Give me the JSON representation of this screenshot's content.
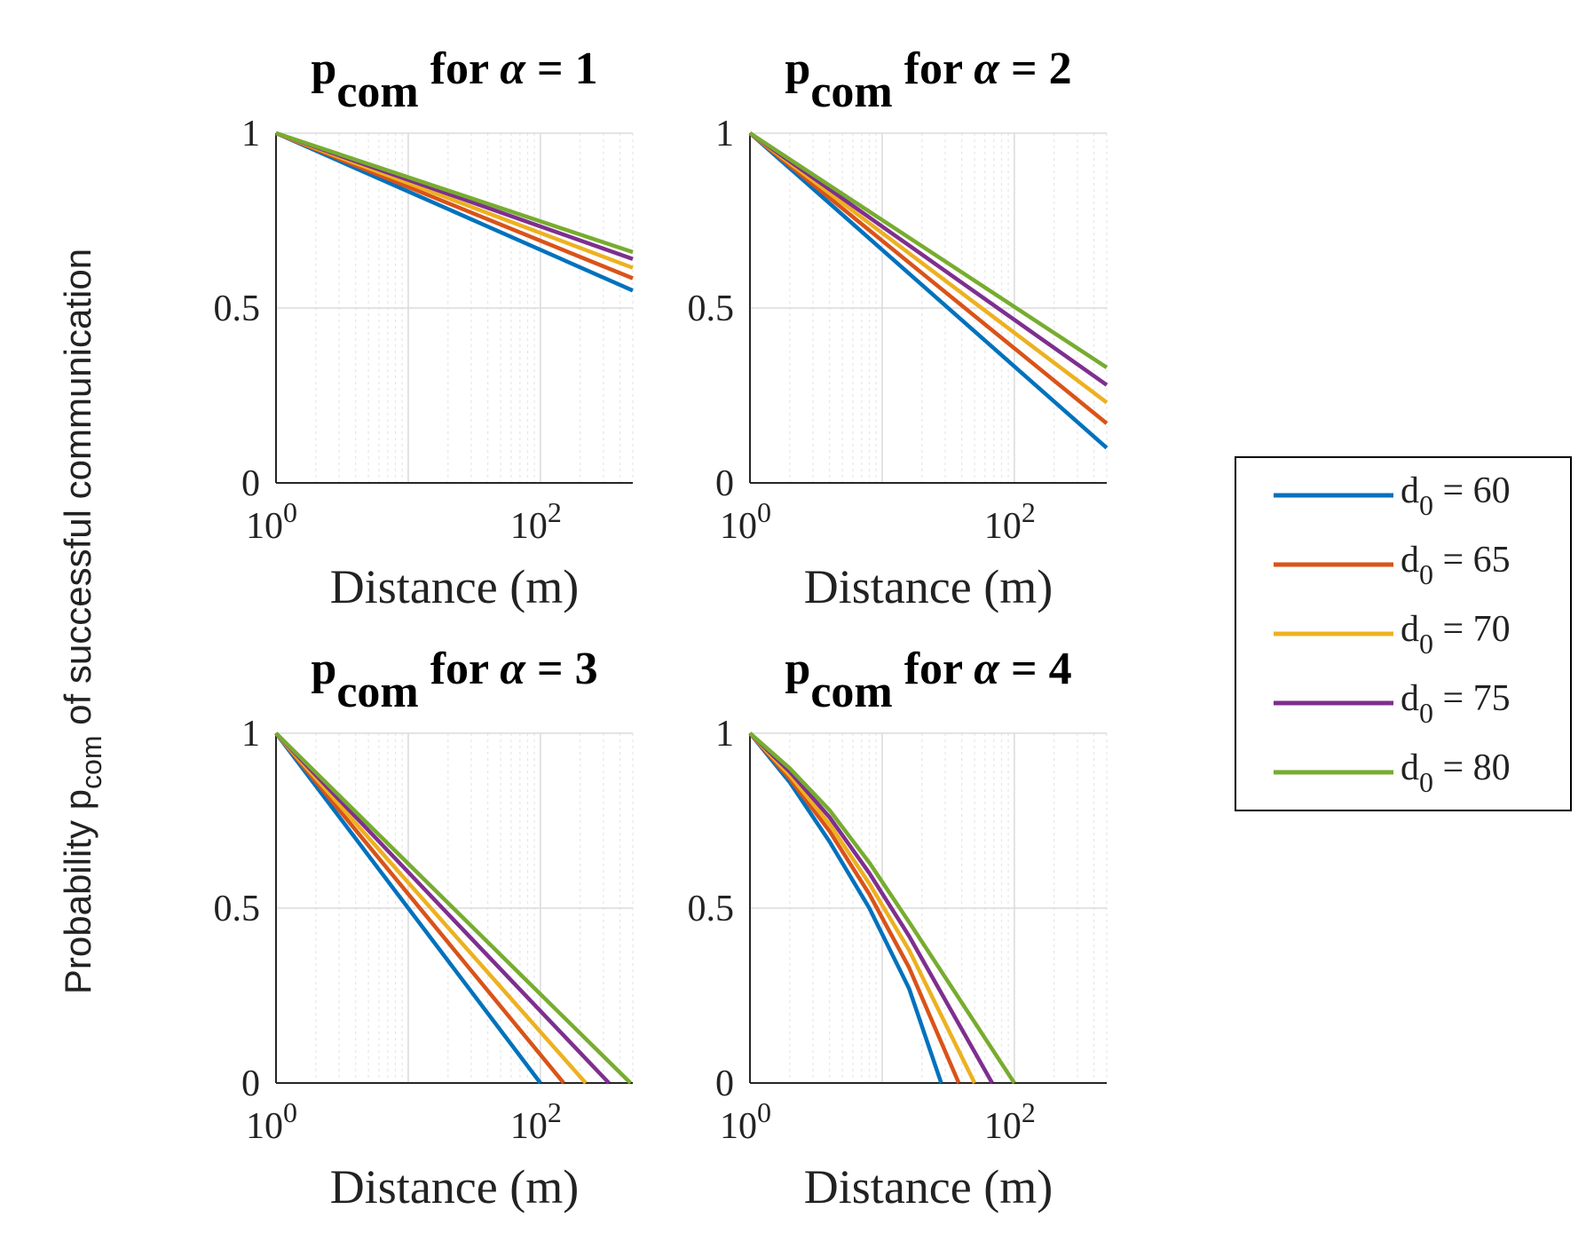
{
  "figure": {
    "ylabel_main": "Probability p",
    "ylabel_sub": "com",
    "ylabel_tail": " of successful communication"
  },
  "legend_labels": [
    "d0 = 60",
    "d0 = 65",
    "d0 = 70",
    "d0 = 75",
    "d0 = 80"
  ],
  "legend_items": [
    {
      "base": "d",
      "sub": "0",
      "rest": " = 60",
      "color": "#0072BD"
    },
    {
      "base": "d",
      "sub": "0",
      "rest": " = 65",
      "color": "#D95319"
    },
    {
      "base": "d",
      "sub": "0",
      "rest": " = 70",
      "color": "#EDB120"
    },
    {
      "base": "d",
      "sub": "0",
      "rest": " = 75",
      "color": "#7E2F8E"
    },
    {
      "base": "d",
      "sub": "0",
      "rest": " = 80",
      "color": "#77AC30"
    }
  ],
  "chart_data": [
    {
      "type": "line",
      "title": "pcom for α = 1",
      "title_main": "p",
      "title_sub": "com",
      "title_rest": " for ",
      "title_greek": "α",
      "title_eq": " = 1",
      "xlabel": "Distance (m)",
      "ylabel": "",
      "xscale": "log",
      "xlim": [
        1,
        500
      ],
      "ylim": [
        0,
        1
      ],
      "xticks": [
        {
          "base": "10",
          "exp": "0"
        },
        {
          "base": "10",
          "exp": "2"
        }
      ],
      "yticks": [
        "0",
        "0.5",
        "1"
      ],
      "grid": true,
      "x": [
        1,
        500
      ],
      "series": [
        {
          "name": "d0 = 60",
          "values": [
            1,
            0.55
          ]
        },
        {
          "name": "d0 = 65",
          "values": [
            1,
            0.585
          ]
        },
        {
          "name": "d0 = 70",
          "values": [
            1,
            0.615
          ]
        },
        {
          "name": "d0 = 75",
          "values": [
            1,
            0.64
          ]
        },
        {
          "name": "d0 = 80",
          "values": [
            1,
            0.66
          ]
        }
      ]
    },
    {
      "type": "line",
      "title": "pcom for α = 2",
      "title_main": "p",
      "title_sub": "com",
      "title_rest": " for ",
      "title_greek": "α",
      "title_eq": " = 2",
      "xlabel": "Distance (m)",
      "ylabel": "",
      "xscale": "log",
      "xlim": [
        1,
        500
      ],
      "ylim": [
        0,
        1
      ],
      "xticks": [
        {
          "base": "10",
          "exp": "0"
        },
        {
          "base": "10",
          "exp": "2"
        }
      ],
      "yticks": [
        "0",
        "0.5",
        "1"
      ],
      "grid": true,
      "x": [
        1,
        500
      ],
      "series": [
        {
          "name": "d0 = 60",
          "values": [
            1,
            0.1
          ]
        },
        {
          "name": "d0 = 65",
          "values": [
            1,
            0.17
          ]
        },
        {
          "name": "d0 = 70",
          "values": [
            1,
            0.23
          ]
        },
        {
          "name": "d0 = 75",
          "values": [
            1,
            0.28
          ]
        },
        {
          "name": "d0 = 80",
          "values": [
            1,
            0.33
          ]
        }
      ]
    },
    {
      "type": "line",
      "title": "pcom for α = 3",
      "title_main": "p",
      "title_sub": "com",
      "title_rest": " for ",
      "title_greek": "α",
      "title_eq": " = 3",
      "xlabel": "Distance (m)",
      "ylabel": "",
      "xscale": "log",
      "xlim": [
        1,
        500
      ],
      "ylim": [
        0,
        1
      ],
      "xticks": [
        {
          "base": "10",
          "exp": "0"
        },
        {
          "base": "10",
          "exp": "2"
        }
      ],
      "yticks": [
        "0",
        "0.5",
        "1"
      ],
      "grid": true,
      "series": [
        {
          "name": "d0 = 60",
          "x": [
            1,
            100
          ],
          "values": [
            1,
            0
          ]
        },
        {
          "name": "d0 = 65",
          "x": [
            1,
            150
          ],
          "values": [
            1,
            0
          ]
        },
        {
          "name": "d0 = 70",
          "x": [
            1,
            220
          ],
          "values": [
            1,
            0
          ]
        },
        {
          "name": "d0 = 75",
          "x": [
            1,
            330
          ],
          "values": [
            1,
            0
          ]
        },
        {
          "name": "d0 = 80",
          "x": [
            1,
            480
          ],
          "values": [
            1,
            0
          ]
        }
      ]
    },
    {
      "type": "line",
      "title": "pcom for α = 4",
      "title_main": "p",
      "title_sub": "com",
      "title_rest": " for ",
      "title_greek": "α",
      "title_eq": " = 4",
      "xlabel": "Distance (m)",
      "ylabel": "",
      "xscale": "log",
      "xlim": [
        1,
        500
      ],
      "ylim": [
        0,
        1
      ],
      "xticks": [
        {
          "base": "10",
          "exp": "0"
        },
        {
          "base": "10",
          "exp": "2"
        }
      ],
      "yticks": [
        "0",
        "0.5",
        "1"
      ],
      "grid": true,
      "series": [
        {
          "name": "d0 = 60",
          "x": [
            1,
            2,
            4,
            8,
            16,
            28
          ],
          "values": [
            1,
            0.86,
            0.69,
            0.5,
            0.27,
            0
          ]
        },
        {
          "name": "d0 = 65",
          "x": [
            1,
            2,
            4,
            8,
            16,
            38
          ],
          "values": [
            1,
            0.87,
            0.72,
            0.54,
            0.33,
            0
          ]
        },
        {
          "name": "d0 = 70",
          "x": [
            1,
            2,
            4,
            8,
            16,
            50
          ],
          "values": [
            1,
            0.88,
            0.74,
            0.57,
            0.38,
            0
          ]
        },
        {
          "name": "d0 = 75",
          "x": [
            1,
            2,
            4,
            8,
            16,
            68
          ],
          "values": [
            1,
            0.89,
            0.76,
            0.6,
            0.42,
            0
          ]
        },
        {
          "name": "d0 = 80",
          "x": [
            1,
            2,
            4,
            8,
            16,
            100
          ],
          "values": [
            1,
            0.9,
            0.78,
            0.63,
            0.46,
            0
          ]
        }
      ]
    }
  ]
}
